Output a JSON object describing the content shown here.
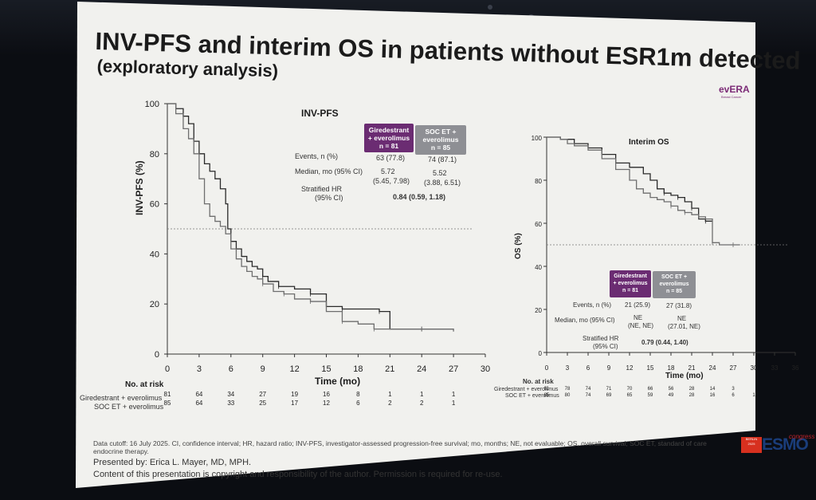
{
  "slide": {
    "title": "INV-PFS and interim OS in patients without ESR1m detected",
    "subtitle": "(exploratory analysis)",
    "logo": {
      "name": "evERA",
      "tagline": "Breast Cancer"
    },
    "footnote": "Data cutoff: 16 July 2025. CI, confidence interval; HR, hazard ratio; INV-PFS, investigator-assessed progression-free survival; mo, months; NE, not evaluable; OS, overall survival; SOC ET, standard of care endocrine therapy.",
    "presenter": "Presented by: Erica L. Mayer, MD, MPH.",
    "copyright": "Content of this presentation is copyright and responsibility of the author. Permission is required for re-use.",
    "congress": {
      "city": "BERLIN",
      "year": "2025",
      "brand": "ESMO",
      "word": "congress"
    }
  },
  "chart_data": [
    {
      "type": "line",
      "title": "INV-PFS",
      "xlabel": "Time (mo)",
      "ylabel": "INV-PFS (%)",
      "xlim": [
        0,
        30
      ],
      "ylim": [
        0,
        100
      ],
      "x_ticks": [
        0,
        3,
        6,
        9,
        12,
        15,
        18,
        21,
        24,
        27,
        30
      ],
      "y_ticks": [
        0,
        20,
        40,
        60,
        80,
        100
      ],
      "median_reference": 50,
      "series": [
        {
          "name": "Giredestrant + everolimus",
          "color": "#2a2a2a",
          "x": [
            0,
            0.8,
            1.5,
            2.0,
            2.5,
            3.0,
            3.5,
            4.0,
            4.5,
            5.0,
            5.5,
            5.7,
            6.0,
            6.5,
            7.0,
            7.5,
            8.0,
            8.5,
            9.0,
            9.5,
            10.5,
            12.0,
            13.5,
            15.0,
            16.5,
            18.0,
            20.0,
            21.0,
            24.0,
            27.0
          ],
          "y": [
            100,
            98,
            95,
            92,
            85,
            80,
            76,
            73,
            70,
            66,
            60,
            50,
            45,
            42,
            39,
            37,
            35,
            34,
            31,
            29,
            27,
            26,
            24,
            19,
            18,
            18,
            17,
            10,
            10,
            10
          ]
        },
        {
          "name": "SOC ET + everolimus",
          "color": "#6e6e6e",
          "x": [
            0,
            0.8,
            1.5,
            2.0,
            2.5,
            3.0,
            3.5,
            4.0,
            4.5,
            5.0,
            5.5,
            6.0,
            6.5,
            7.0,
            7.5,
            8.0,
            8.5,
            9.0,
            10.0,
            11.0,
            12.0,
            13.5,
            15.0,
            16.5,
            18.0,
            19.5,
            21.0,
            24.0,
            27.0
          ],
          "y": [
            100,
            96,
            90,
            86,
            80,
            70,
            60,
            55,
            53,
            51,
            48,
            42,
            38,
            35,
            33,
            31,
            30,
            28,
            25,
            24,
            22,
            21,
            17,
            13,
            12,
            10,
            10,
            10,
            9
          ]
        }
      ],
      "table": {
        "col_headers": [
          {
            "line1": "Giredestrant",
            "line2": "+ everolimus",
            "line3": "n = 81"
          },
          {
            "line1": "SOC ET +",
            "line2": "everolimus",
            "line3": "n = 85"
          }
        ],
        "events_label": "Events, n (%)",
        "events": [
          "63 (77.8)",
          "74 (87.1)"
        ],
        "median_label": "Median, mo (95% CI)",
        "median": [
          "5.72",
          "5.52"
        ],
        "median_ci": [
          "(5.45, 7.98)",
          "(3.88, 6.51)"
        ],
        "hr_label": "Stratified HR",
        "hr_label2": "(95% CI)",
        "hr": "0.84 (0.59, 1.18)"
      },
      "at_risk": {
        "label": "No. at risk",
        "rows": [
          {
            "name": "Giredestrant + everolimus",
            "counts": [
              "81",
              "64",
              "34",
              "27",
              "19",
              "16",
              "8",
              "1",
              "1",
              "1"
            ]
          },
          {
            "name": "SOC ET + everolimus",
            "counts": [
              "85",
              "64",
              "33",
              "25",
              "17",
              "12",
              "6",
              "2",
              "2",
              "1"
            ]
          }
        ]
      }
    },
    {
      "type": "line",
      "title": "Interim OS",
      "xlabel": "Time (mo)",
      "ylabel": "OS (%)",
      "xlim": [
        0,
        36
      ],
      "ylim": [
        0,
        100
      ],
      "x_ticks": [
        0,
        3,
        6,
        9,
        12,
        15,
        18,
        21,
        24,
        27,
        30,
        33,
        36
      ],
      "y_ticks": [
        0,
        20,
        40,
        60,
        80,
        100
      ],
      "median_reference": 50,
      "series": [
        {
          "name": "Giredestrant + everolimus",
          "color": "#2a2a2a",
          "x": [
            0,
            2,
            4,
            6,
            8,
            10,
            12,
            14,
            15,
            16,
            17,
            18,
            19,
            20,
            21,
            22,
            23,
            24
          ],
          "y": [
            100,
            99,
            97,
            95,
            92,
            88,
            86,
            83,
            80,
            76,
            74,
            73,
            72,
            70,
            67,
            62,
            61,
            61
          ]
        },
        {
          "name": "SOC ET + everolimus",
          "color": "#6e6e6e",
          "x": [
            0,
            2,
            3,
            4,
            6,
            8,
            10,
            12,
            13,
            14,
            15,
            16,
            17,
            18,
            19,
            20,
            21,
            22,
            23,
            24,
            25,
            27,
            28
          ],
          "y": [
            100,
            99,
            97,
            96,
            94,
            90,
            85,
            80,
            76,
            74,
            72,
            71,
            70,
            68,
            66,
            65,
            64,
            63,
            62,
            51,
            50,
            50,
            50
          ]
        }
      ],
      "table": {
        "col_headers": [
          {
            "line1": "Giredestrant",
            "line2": "+ everolimus",
            "line3": "n = 81"
          },
          {
            "line1": "SOC ET +",
            "line2": "everolimus",
            "line3": "n = 85"
          }
        ],
        "events_label": "Events, n (%)",
        "events": [
          "21 (25.9)",
          "27 (31.8)"
        ],
        "median_label": "Median, mo (95% CI)",
        "median": [
          "NE",
          "NE"
        ],
        "median_ci": [
          "(NE, NE)",
          "(27.01, NE)"
        ],
        "hr_label": "Stratified HR",
        "hr_label2": "(95% CI)",
        "hr": "0.79 (0.44, 1.40)"
      },
      "at_risk": {
        "label": "No. at risk",
        "rows": [
          {
            "name": "Giredestrant + everolimus",
            "counts": [
              "81",
              "78",
              "74",
              "71",
              "70",
              "66",
              "56",
              "28",
              "14",
              "3"
            ]
          },
          {
            "name": "SOC ET + everolimus",
            "counts": [
              "85",
              "80",
              "74",
              "69",
              "65",
              "59",
              "49",
              "28",
              "16",
              "6",
              "1"
            ]
          }
        ]
      }
    }
  ]
}
